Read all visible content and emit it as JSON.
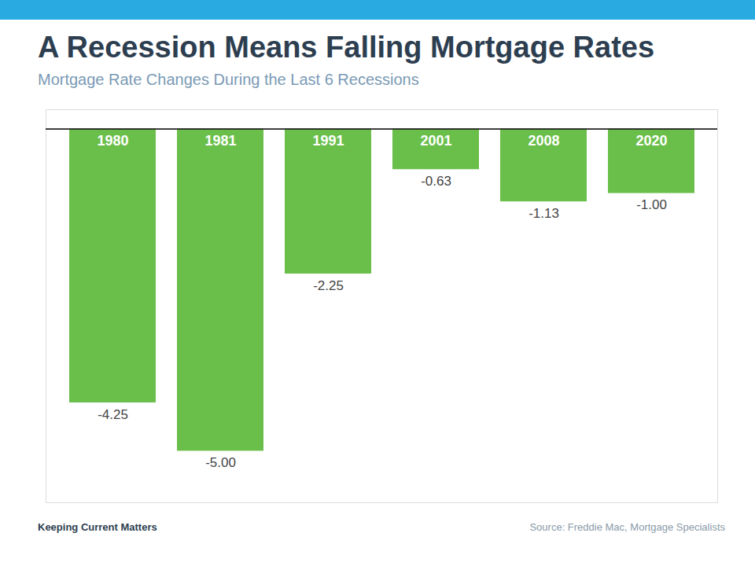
{
  "chart_data": {
    "type": "bar",
    "title": "A Recession Means Falling Mortgage Rates",
    "subtitle": "Mortgage Rate Changes During the Last 6 Recessions",
    "categories": [
      "1980",
      "1981",
      "1991",
      "2001",
      "2008",
      "2020"
    ],
    "values": [
      -4.25,
      -5.0,
      -2.25,
      -0.63,
      -1.13,
      -1.0
    ],
    "value_labels": [
      "-4.25",
      "-5.00",
      "-2.25",
      "-0.63",
      "-1.13",
      "-1.00"
    ],
    "color": "#6abf4b",
    "ylim": [
      -5.8,
      0.3
    ],
    "yticks": [],
    "grid": false,
    "data_labels": true,
    "tick_labels": "x",
    "annotations": [
      "Keeping Current Matters",
      "Source: Freddie Mac, Mortgage Specialists"
    ]
  }
}
